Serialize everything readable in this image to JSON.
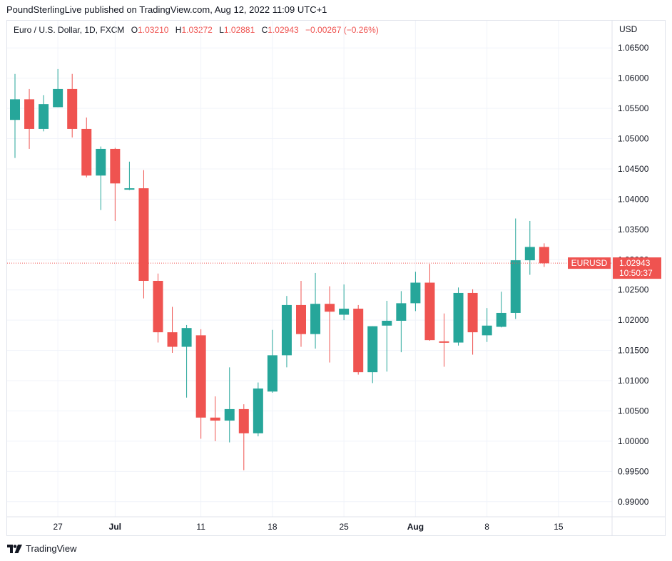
{
  "header": {
    "attribution": "PoundSterlingLive published on TradingView.com, Aug 12, 2022 11:09 UTC+1"
  },
  "legend": {
    "symbol": "Euro / U.S. Dollar, 1D, FXCM",
    "open_label": "O",
    "open": "1.03210",
    "high_label": "H",
    "high": "1.03272",
    "low_label": "L",
    "low": "1.02881",
    "close_label": "C",
    "close": "1.02943",
    "change": "−0.00267 (−0.26%)"
  },
  "footer": {
    "brand": "TradingView"
  },
  "colors": {
    "up": "#26a69a",
    "down": "#ef5350",
    "grid": "#f0f3fa",
    "text": "#131722",
    "border": "#e0e3eb"
  },
  "chart_data": {
    "type": "candlestick",
    "symbol": "EURUSD",
    "currency": "USD",
    "ylim": [
      0.9875,
      1.0695
    ],
    "y_ticks": [
      "0.99000",
      "0.99500",
      "1.00000",
      "1.00500",
      "1.01000",
      "1.01500",
      "1.02000",
      "1.02500",
      "1.03000",
      "1.03500",
      "1.04000",
      "1.04500",
      "1.05000",
      "1.05500",
      "1.06000",
      "1.06500"
    ],
    "x_ticks": [
      {
        "label": "27",
        "index": 3,
        "bold": false
      },
      {
        "label": "Jul",
        "index": 7,
        "bold": true
      },
      {
        "label": "11",
        "index": 13,
        "bold": false
      },
      {
        "label": "18",
        "index": 18,
        "bold": false
      },
      {
        "label": "25",
        "index": 23,
        "bold": false
      },
      {
        "label": "Aug",
        "index": 28,
        "bold": true
      },
      {
        "label": "8",
        "index": 33,
        "bold": false
      },
      {
        "label": "15",
        "index": 38,
        "bold": false
      }
    ],
    "last_price": {
      "symbol": "EURUSD",
      "price": "1.02943",
      "countdown": "10:50:37",
      "value": 1.02943
    },
    "candles": [
      {
        "o": 1.0531,
        "h": 1.0607,
        "l": 1.0468,
        "c": 1.0565
      },
      {
        "o": 1.0565,
        "h": 1.0582,
        "l": 1.0483,
        "c": 1.0516
      },
      {
        "o": 1.0516,
        "h": 1.0572,
        "l": 1.0512,
        "c": 1.0557
      },
      {
        "o": 1.0552,
        "h": 1.0615,
        "l": 1.0552,
        "c": 1.0582
      },
      {
        "o": 1.0582,
        "h": 1.0607,
        "l": 1.0502,
        "c": 1.0516
      },
      {
        "o": 1.0516,
        "h": 1.0535,
        "l": 1.0436,
        "c": 1.0439
      },
      {
        "o": 1.0439,
        "h": 1.0487,
        "l": 1.0382,
        "c": 1.0483
      },
      {
        "o": 1.0483,
        "h": 1.0485,
        "l": 1.0364,
        "c": 1.0426
      },
      {
        "o": 1.0416,
        "h": 1.0462,
        "l": 1.0415,
        "c": 1.0418
      },
      {
        "o": 1.0418,
        "h": 1.0448,
        "l": 1.0236,
        "c": 1.0265
      },
      {
        "o": 1.0265,
        "h": 1.0277,
        "l": 1.0163,
        "c": 1.018
      },
      {
        "o": 1.018,
        "h": 1.0222,
        "l": 1.0146,
        "c": 1.0156
      },
      {
        "o": 1.0156,
        "h": 1.0192,
        "l": 1.0072,
        "c": 1.0187
      },
      {
        "o": 1.0175,
        "h": 1.0185,
        "l": 1.0004,
        "c": 1.0039
      },
      {
        "o": 1.0039,
        "h": 1.0074,
        "l": 1.0,
        "c": 1.0034
      },
      {
        "o": 1.0034,
        "h": 1.0122,
        "l": 0.9998,
        "c": 1.0053
      },
      {
        "o": 1.0053,
        "h": 1.0061,
        "l": 0.9952,
        "c": 1.0013
      },
      {
        "o": 1.0013,
        "h": 1.0097,
        "l": 1.0008,
        "c": 1.0087
      },
      {
        "o": 1.0082,
        "h": 1.0184,
        "l": 1.008,
        "c": 1.0142
      },
      {
        "o": 1.0142,
        "h": 1.024,
        "l": 1.0122,
        "c": 1.0225
      },
      {
        "o": 1.0225,
        "h": 1.0265,
        "l": 1.0156,
        "c": 1.0177
      },
      {
        "o": 1.0177,
        "h": 1.0278,
        "l": 1.0153,
        "c": 1.0227
      },
      {
        "o": 1.0227,
        "h": 1.0256,
        "l": 1.013,
        "c": 1.0214
      },
      {
        "o": 1.0209,
        "h": 1.0259,
        "l": 1.02,
        "c": 1.0219
      },
      {
        "o": 1.0219,
        "h": 1.0225,
        "l": 1.011,
        "c": 1.0114
      },
      {
        "o": 1.0114,
        "h": 1.019,
        "l": 1.0096,
        "c": 1.019
      },
      {
        "o": 1.0191,
        "h": 1.0232,
        "l": 1.0115,
        "c": 1.0199
      },
      {
        "o": 1.0199,
        "h": 1.0248,
        "l": 1.0147,
        "c": 1.0228
      },
      {
        "o": 1.0228,
        "h": 1.028,
        "l": 1.0215,
        "c": 1.0262
      },
      {
        "o": 1.0262,
        "h": 1.0293,
        "l": 1.0166,
        "c": 1.0167
      },
      {
        "o": 1.0165,
        "h": 1.0211,
        "l": 1.0123,
        "c": 1.0163
      },
      {
        "o": 1.0163,
        "h": 1.0254,
        "l": 1.0158,
        "c": 1.0245
      },
      {
        "o": 1.0245,
        "h": 1.0251,
        "l": 1.0143,
        "c": 1.018
      },
      {
        "o": 1.0175,
        "h": 1.022,
        "l": 1.0164,
        "c": 1.0191
      },
      {
        "o": 1.0189,
        "h": 1.0247,
        "l": 1.0188,
        "c": 1.0212
      },
      {
        "o": 1.0212,
        "h": 1.0368,
        "l": 1.0202,
        "c": 1.0299
      },
      {
        "o": 1.0299,
        "h": 1.0364,
        "l": 1.0275,
        "c": 1.0321
      },
      {
        "o": 1.0321,
        "h": 1.0327,
        "l": 1.0288,
        "c": 1.0294
      }
    ]
  }
}
